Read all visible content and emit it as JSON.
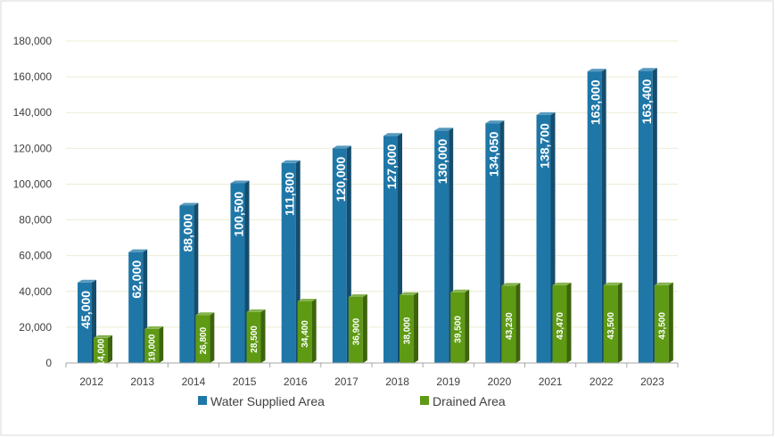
{
  "chart_data": {
    "type": "bar",
    "title": "",
    "xlabel": "",
    "ylabel": "",
    "categories": [
      "2012",
      "2013",
      "2014",
      "2015",
      "2016",
      "2017",
      "2018",
      "2019",
      "2020",
      "2021",
      "2022",
      "2023"
    ],
    "series": [
      {
        "name": "Water Supplied Area",
        "color": "#1F77A8",
        "values": [
          45000,
          62000,
          88000,
          100500,
          111800,
          120000,
          127000,
          130000,
          134050,
          138700,
          163000,
          163400
        ],
        "labels": [
          "45,000",
          "62,000",
          "88,000",
          "100,500",
          "111,800",
          "120,000",
          "127,000",
          "130,000",
          "134,050",
          "138,700",
          "163,000",
          "163,400"
        ]
      },
      {
        "name": "Drained Area",
        "color": "#5E9A14",
        "values": [
          14000,
          19000,
          26800,
          28500,
          34400,
          36900,
          38000,
          39500,
          43230,
          43470,
          43500,
          43500
        ],
        "labels": [
          "14,000",
          "19,000",
          "26,800",
          "28,500",
          "34,400",
          "36,900",
          "38,000",
          "39,500",
          "43,230",
          "43,470",
          "43,500",
          "43,500"
        ]
      }
    ],
    "ylim": [
      0,
      180000
    ],
    "yticks": [
      0,
      20000,
      40000,
      60000,
      80000,
      100000,
      120000,
      140000,
      160000,
      180000
    ],
    "ytick_labels": [
      "0",
      "20,000",
      "40,000",
      "60,000",
      "80,000",
      "100,000",
      "120,000",
      "140,000",
      "160,000",
      "180,000"
    ],
    "grid": true,
    "legend_position": "bottom"
  }
}
